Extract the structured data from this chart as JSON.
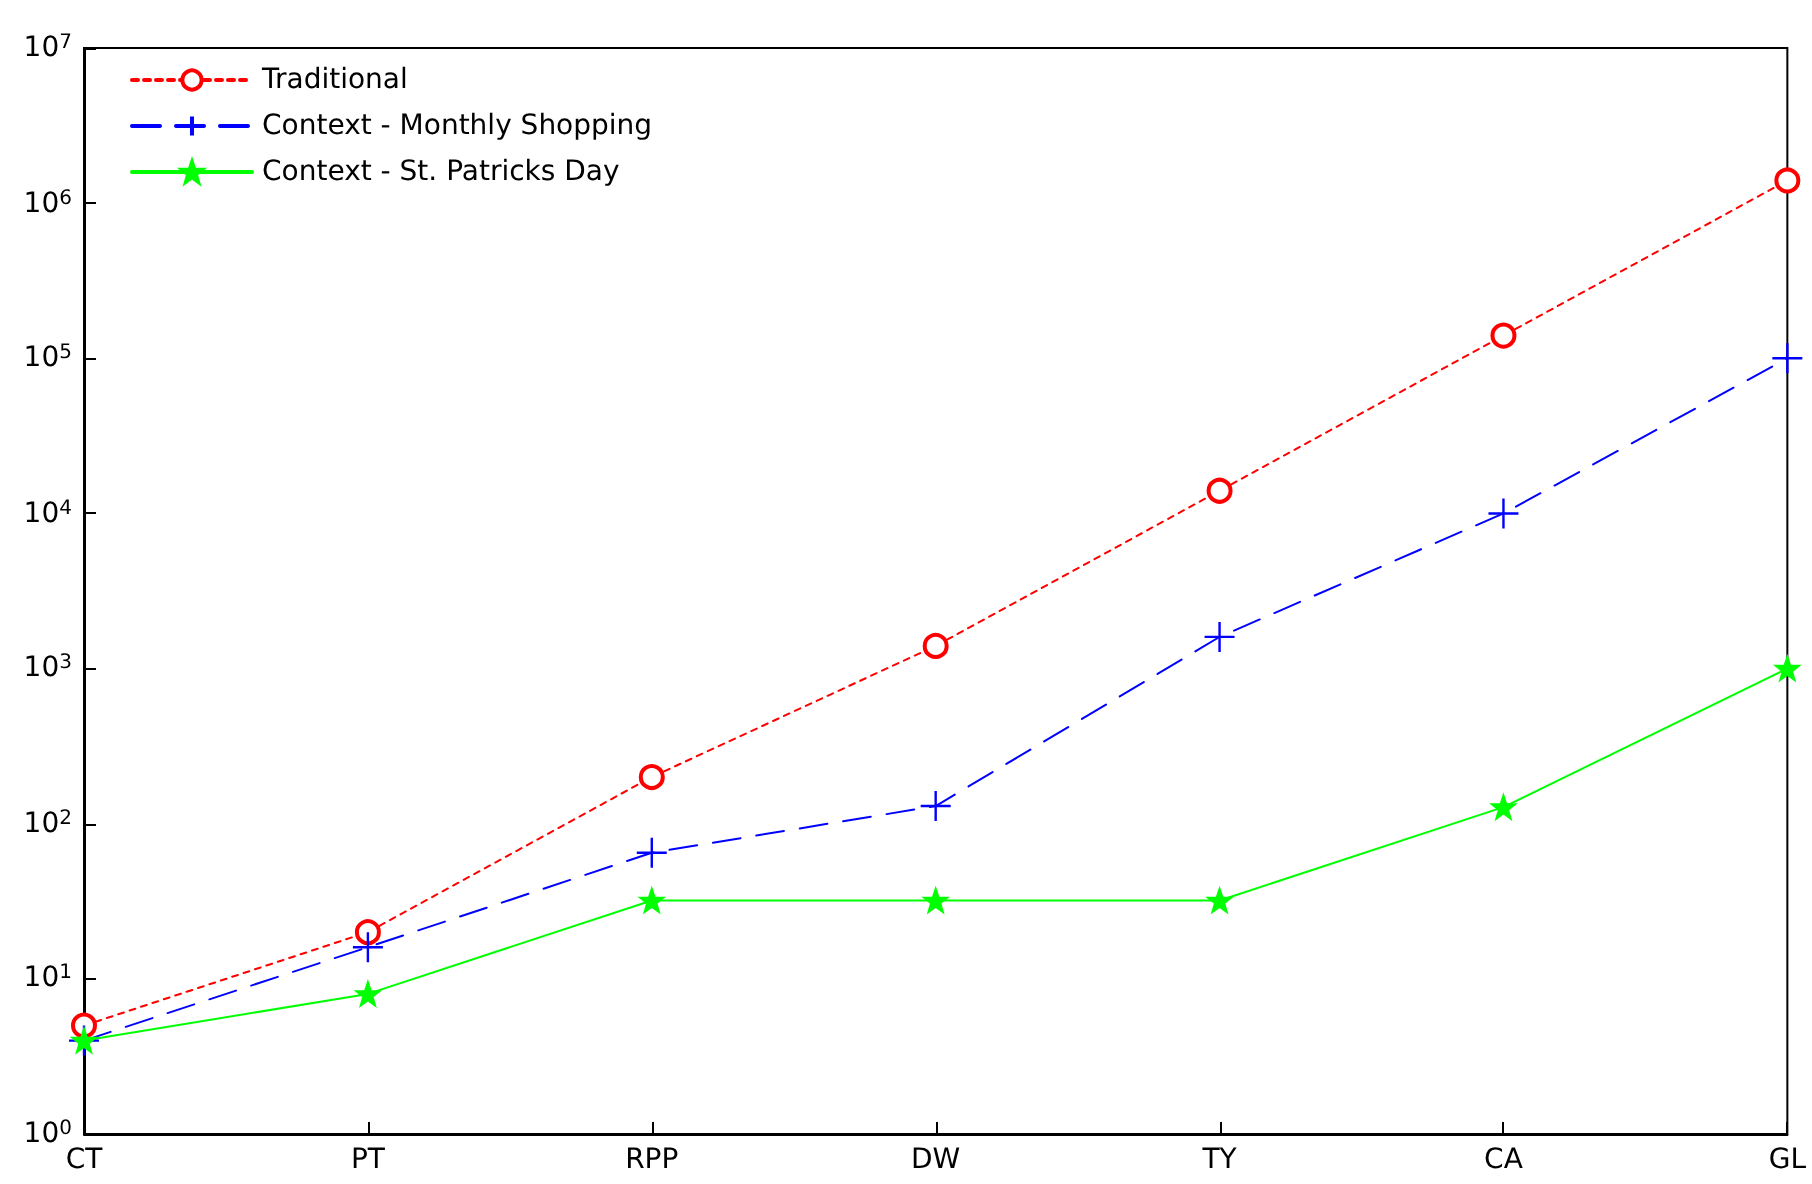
{
  "chart_data": {
    "type": "line",
    "categories": [
      "CT",
      "PT",
      "RPP",
      "DW",
      "TY",
      "CA",
      "GL"
    ],
    "series": [
      {
        "name": "Traditional",
        "color": "#ff0000",
        "marker": "circle",
        "line_style": "dotted",
        "values": [
          5,
          20,
          200,
          1400,
          14000,
          140000,
          1400000
        ]
      },
      {
        "name": "Context - Monthly Shopping",
        "color": "#0000ff",
        "marker": "cross",
        "line_style": "dashed",
        "values": [
          4,
          16,
          65,
          130,
          1600,
          10000,
          100000
        ]
      },
      {
        "name": "Context - St. Patricks Day",
        "color": "#00ff00",
        "marker": "star",
        "line_style": "solid",
        "values": [
          4,
          8,
          32,
          32,
          32,
          128,
          1000
        ]
      }
    ],
    "log": "y",
    "ylim": [
      1,
      10000000
    ],
    "yticks": [
      {
        "value": 1,
        "label": "10$^{0}$"
      },
      {
        "value": 10,
        "label": "10$^{1}$"
      },
      {
        "value": 100,
        "label": "10$^{2}$"
      },
      {
        "value": 1000,
        "label": "10$^{3}$"
      },
      {
        "value": 10000,
        "label": "10$^{4}$"
      },
      {
        "value": 100000,
        "label": "10$^{5}$"
      },
      {
        "value": 1000000,
        "label": "10$^{6}$"
      },
      {
        "value": 10000000,
        "label": "10$^{7}$"
      }
    ],
    "grid": false,
    "legend": "top left"
  }
}
